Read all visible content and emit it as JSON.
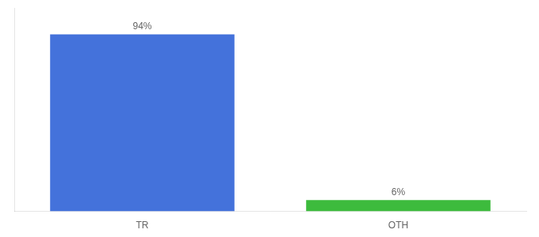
{
  "chart_data": {
    "type": "bar",
    "categories": [
      "TR",
      "OTH"
    ],
    "values": [
      94,
      6
    ],
    "value_labels": [
      "94%",
      "6%"
    ],
    "data_labels": true,
    "colors": [
      "#4472db",
      "#3dbb3d"
    ],
    "ylim": [
      0,
      108
    ],
    "tick_labels": "x",
    "grid": false
  }
}
